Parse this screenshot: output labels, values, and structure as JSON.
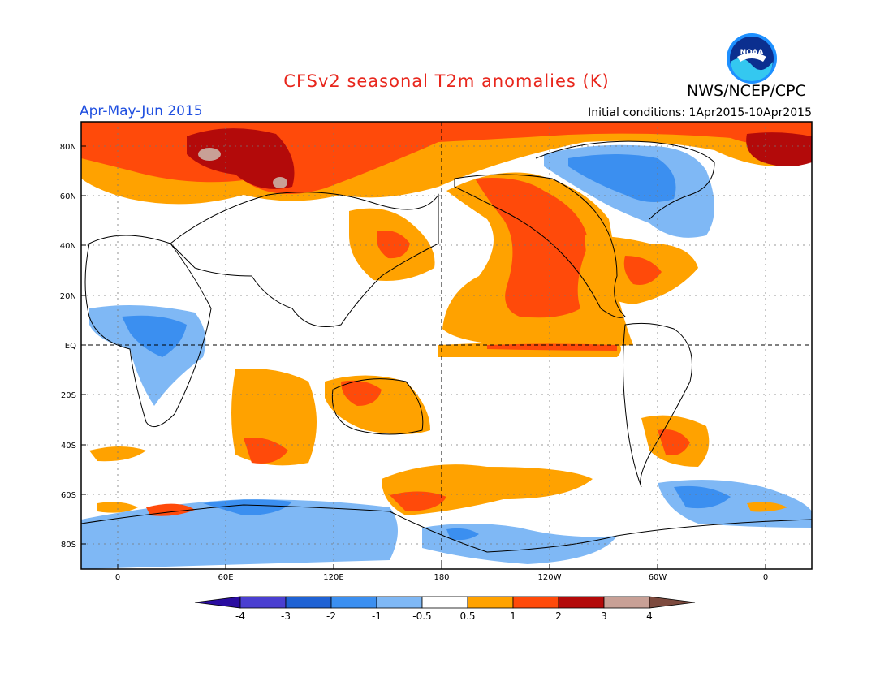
{
  "title": "CFSv2 seasonal T2m anomalies (K)",
  "season": "Apr-May-Jun 2015",
  "initial_conditions": "Initial conditions: 1Apr2015-10Apr2015",
  "org": "NWS/NCEP/CPC",
  "logo_text": "NOAA",
  "colors": {
    "title": "#e8261c",
    "season": "#1f4fe0"
  },
  "lat_labels": [
    "80N",
    "60N",
    "40N",
    "20N",
    "EQ",
    "20S",
    "40S",
    "60S",
    "80S"
  ],
  "lon_labels": [
    "0",
    "60E",
    "120E",
    "180",
    "120W",
    "60W",
    "0"
  ],
  "colorbar": {
    "labels": [
      "-4",
      "-3",
      "-2",
      "-1",
      "-0.5",
      "0.5",
      "1",
      "2",
      "3",
      "4"
    ],
    "colors": [
      "#2a0da0",
      "#4a3fd1",
      "#1f62d4",
      "#3b8ff0",
      "#7fb8f5",
      "#ffffff",
      "#ffa200",
      "#ff4a0a",
      "#b30a0a",
      "#c8a096",
      "#7d4a3e"
    ]
  }
}
